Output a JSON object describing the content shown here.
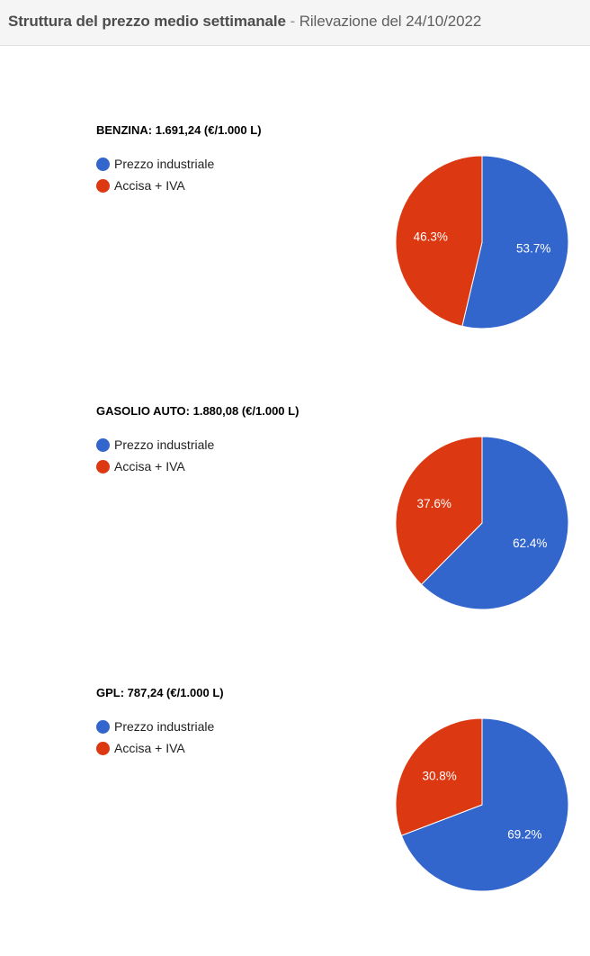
{
  "header": {
    "title": "Struttura del prezzo medio settimanale",
    "separator": " - ",
    "subtitle": "Rilevazione del 24/10/2022"
  },
  "colors": {
    "industrial": "#3366cc",
    "excise": "#dc3912"
  },
  "chart_data": [
    {
      "type": "pie",
      "title": "BENZINA: 1.691,24 (€/1.000 L)",
      "labels": [
        "Prezzo industriale",
        "Accisa + IVA"
      ],
      "values": [
        53.7,
        46.3
      ],
      "value_labels": [
        "53.7%",
        "46.3%"
      ],
      "legend": "left"
    },
    {
      "type": "pie",
      "title": "GASOLIO AUTO: 1.880,08 (€/1.000 L)",
      "labels": [
        "Prezzo industriale",
        "Accisa + IVA"
      ],
      "values": [
        62.4,
        37.6
      ],
      "value_labels": [
        "62.4%",
        "37.6%"
      ],
      "legend": "left"
    },
    {
      "type": "pie",
      "title": "GPL: 787,24 (€/1.000 L)",
      "labels": [
        "Prezzo industriale",
        "Accisa + IVA"
      ],
      "values": [
        69.2,
        30.8
      ],
      "value_labels": [
        "69.2%",
        "30.8%"
      ],
      "legend": "left"
    }
  ]
}
